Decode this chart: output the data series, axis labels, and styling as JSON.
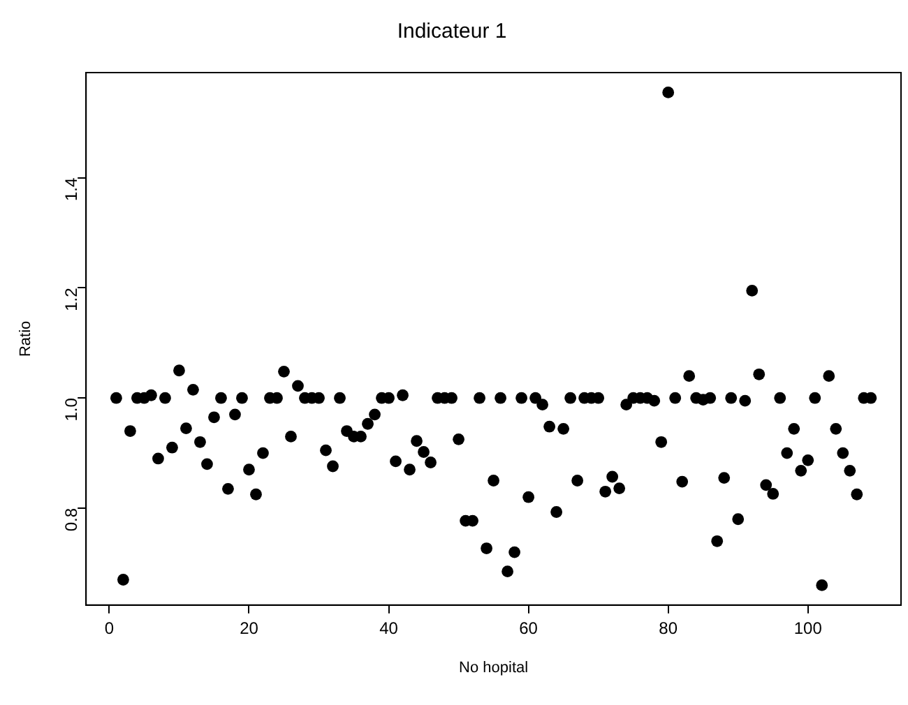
{
  "chart_data": {
    "type": "scatter",
    "title": "Indicateur 1",
    "xlabel": "No hopital",
    "ylabel": "Ratio",
    "x": [
      1,
      2,
      3,
      4,
      5,
      6,
      7,
      8,
      9,
      10,
      11,
      12,
      13,
      14,
      15,
      16,
      17,
      18,
      19,
      20,
      21,
      22,
      23,
      24,
      25,
      26,
      27,
      28,
      29,
      30,
      31,
      32,
      33,
      34,
      35,
      36,
      37,
      38,
      39,
      40,
      41,
      42,
      43,
      44,
      45,
      46,
      47,
      48,
      49,
      50,
      51,
      52,
      53,
      54,
      55,
      56,
      57,
      58,
      59,
      60,
      61,
      62,
      63,
      64,
      65,
      66,
      67,
      68,
      69,
      70,
      71,
      72,
      73,
      74,
      75,
      76,
      77,
      78,
      79,
      80,
      81,
      82,
      83,
      84,
      85,
      86,
      87,
      88,
      89,
      90,
      91,
      92,
      93,
      94,
      95,
      96,
      97,
      98,
      99,
      100,
      101,
      102,
      103,
      104,
      105,
      106,
      107,
      108,
      109
    ],
    "values": [
      1.0,
      0.67,
      0.94,
      1.0,
      1.0,
      1.005,
      0.89,
      1.0,
      0.91,
      1.05,
      0.945,
      1.015,
      0.92,
      0.88,
      0.965,
      1.0,
      0.835,
      0.97,
      1.0,
      0.87,
      0.825,
      0.9,
      1.0,
      1.0,
      1.048,
      0.93,
      1.022,
      1.0,
      1.0,
      1.0,
      0.905,
      0.876,
      1.0,
      0.94,
      0.93,
      0.93,
      0.953,
      0.97,
      1.0,
      1.0,
      0.885,
      1.005,
      0.87,
      0.922,
      0.902,
      0.883,
      1.0,
      1.0,
      1.0,
      0.925,
      0.777,
      0.777,
      1.0,
      0.727,
      0.85,
      1.0,
      0.685,
      0.72,
      1.0,
      0.82,
      1.0,
      0.988,
      0.948,
      0.793,
      0.944,
      1.0,
      0.85,
      1.0,
      1.0,
      1.0,
      0.83,
      0.857,
      0.836,
      0.988,
      1.0,
      1.0,
      1.0,
      0.995,
      0.92,
      1.555,
      1.0,
      0.848,
      1.04,
      1.0,
      0.997,
      1.0,
      0.74,
      0.855,
      1.0,
      0.78,
      0.995,
      1.195,
      1.043,
      0.842,
      0.826,
      1.0,
      0.9,
      0.944,
      0.868,
      0.887,
      1.0,
      0.66,
      1.04,
      0.944,
      0.9,
      0.868,
      0.825,
      1.0,
      1.0
    ],
    "color": "#000000",
    "marker": "circle",
    "xlim": [
      -3.32,
      113.32
    ],
    "ylim": [
      0.624,
      1.591
    ],
    "xticks": [
      0,
      20,
      40,
      60,
      80,
      100
    ],
    "yticks": [
      0.8,
      {
        "value": 1.0,
        "label": "1.0"
      },
      1.2,
      1.4
    ],
    "grid": false,
    "legend": false
  }
}
